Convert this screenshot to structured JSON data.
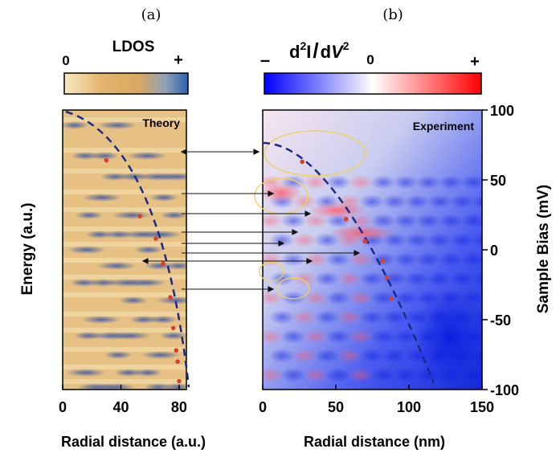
{
  "panel_a": {
    "label": "(a)",
    "colorbar_title": "LDOS",
    "colorbar_min": "0",
    "colorbar_max": "+",
    "colorbar_colors": [
      "#f8e9c0",
      "#e3b470",
      "#d9a85f",
      "#8ea0b8",
      "#2f5fae"
    ],
    "inset_label": "Theory",
    "ylabel": "Energy (a.u.)",
    "xlabel": "Radial distance (a.u.)",
    "xticks": [
      "0",
      "40",
      "80"
    ]
  },
  "panel_b": {
    "label": "(b)",
    "colorbar_title_main": "d",
    "colorbar_title_sup1": "2",
    "colorbar_title_mid": "I",
    "colorbar_title_slash": "/",
    "colorbar_title_d": "d",
    "colorbar_title_v": "V",
    "colorbar_title_sup2": "2",
    "colorbar_min": "–",
    "colorbar_zero": "0",
    "colorbar_max": "+",
    "colorbar_colors": [
      "#0000ff",
      "#ffffff",
      "#ff0000"
    ],
    "inset_label": "Experiment",
    "xlabel": "Radial distance (nm)",
    "xticks": [
      "0",
      "50",
      "100",
      "150"
    ],
    "ylabel": "Sample Bias (mV)",
    "yticks": [
      "100",
      "50",
      "0",
      "-50",
      "-100"
    ]
  },
  "colors": {
    "dashed_curve": "#1a2a8a",
    "marker": "#d8402a",
    "ellipse": "#f0d060",
    "arrow": "#111111"
  },
  "chart_data": [
    {
      "type": "heatmap",
      "panel": "a",
      "title": "",
      "xlabel": "Radial distance (a.u.)",
      "ylabel": "Energy (a.u.)",
      "xlim": [
        0,
        85
      ],
      "x_ticks": [
        0,
        40,
        80
      ],
      "markers": [
        {
          "x": 30,
          "y": 0.82
        },
        {
          "x": 53,
          "y": 0.62
        },
        {
          "x": 64,
          "y": 0.54
        },
        {
          "x": 69,
          "y": 0.45
        },
        {
          "x": 74,
          "y": 0.33
        },
        {
          "x": 76,
          "y": 0.22
        },
        {
          "x": 78,
          "y": 0.14
        },
        {
          "x": 79,
          "y": 0.1
        },
        {
          "x": 80,
          "y": 0.03
        }
      ]
    },
    {
      "type": "heatmap",
      "panel": "b",
      "title": "",
      "xlabel": "Radial distance (nm)",
      "ylabel": "Sample Bias (mV)",
      "xlim": [
        0,
        150
      ],
      "ylim": [
        -100,
        100
      ],
      "x_ticks": [
        0,
        50,
        100,
        150
      ],
      "y_ticks": [
        100,
        50,
        0,
        -50,
        -100
      ],
      "markers": [
        {
          "x": 27,
          "y": 63
        },
        {
          "x": 57,
          "y": 22
        },
        {
          "x": 70,
          "y": 6
        },
        {
          "x": 82,
          "y": -8
        },
        {
          "x": 85,
          "y": -20
        },
        {
          "x": 88,
          "y": -35
        }
      ]
    }
  ]
}
